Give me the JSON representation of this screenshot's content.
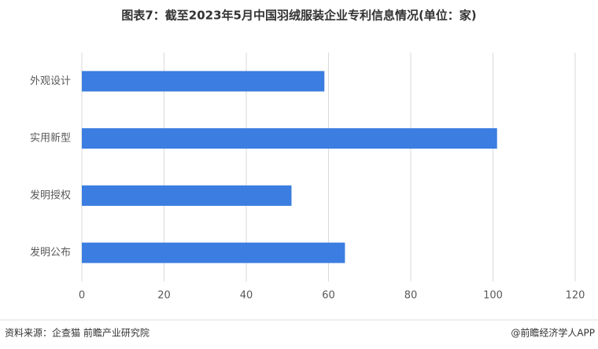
{
  "chart_data": {
    "type": "hbar",
    "title": "图表7：截至2023年5月中国羽绒服装企业专利信息情况(单位：家)",
    "categories": [
      "外观设计",
      "实用新型",
      "发明授权",
      "发明公布"
    ],
    "values": [
      59,
      101,
      51,
      64
    ],
    "color": "#3b7de0",
    "xlim": [
      0,
      120
    ],
    "xticks": [
      0,
      20,
      40,
      60,
      80,
      100,
      120
    ],
    "grid": true,
    "source": "资料来源：企查猫 前瞻产业研究院",
    "credit": "@前瞻经济学人APP"
  }
}
